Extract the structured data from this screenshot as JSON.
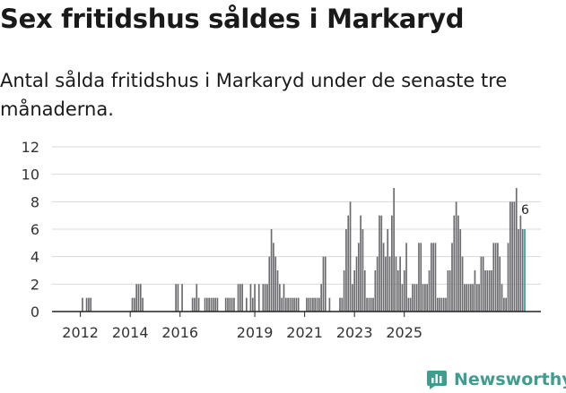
{
  "header": {
    "title": "Sex fritidshus såldes i Markaryd",
    "subtitle": "Antal sålda fritidshus i Markaryd under de senaste tre månaderna."
  },
  "brand": {
    "name": "Newsworthy",
    "icon": "newsworthy-chart-icon",
    "color": "#3f9c8f"
  },
  "chart_data": {
    "type": "bar",
    "title": "",
    "xlabel": "",
    "ylabel": "",
    "ylim": [
      0,
      12
    ],
    "yticks": [
      "0",
      "2",
      "4",
      "6",
      "8",
      "10",
      "12"
    ],
    "grid": true,
    "bar_color": "#6b6a6e",
    "highlight_color": "#2a9e9a",
    "annotation": "6",
    "xticks": [
      {
        "label": "2012",
        "date": "2012-01"
      },
      {
        "label": "2014",
        "date": "2014-01"
      },
      {
        "label": "2016",
        "date": "2016-01"
      },
      {
        "label": "2019",
        "date": "2019-01"
      },
      {
        "label": "2021",
        "date": "2021-01"
      },
      {
        "label": "2023",
        "date": "2023-01"
      },
      {
        "label": "2025",
        "date": "2025-01"
      }
    ],
    "start": "2011-11",
    "series": [
      {
        "values": [
          0,
          0,
          0,
          1,
          0,
          1,
          1,
          1,
          0,
          0,
          0,
          0,
          0,
          0,
          0,
          0,
          0,
          0,
          0,
          0,
          0,
          0,
          0,
          0,
          0,
          0,
          0,
          1,
          1,
          2,
          2,
          2,
          1,
          0,
          0,
          0,
          0,
          0,
          0,
          0,
          0,
          0,
          0,
          0,
          0,
          0,
          0,
          0,
          2,
          2,
          0,
          2,
          0,
          0,
          0,
          0,
          1,
          1,
          2,
          1,
          0,
          0,
          1,
          1,
          1,
          1,
          1,
          1,
          1,
          0,
          0,
          0,
          1,
          1,
          1,
          1,
          1,
          0,
          2,
          2,
          2,
          0,
          1,
          0,
          2,
          1,
          2,
          0,
          2,
          0,
          2,
          2,
          2,
          4,
          6,
          5,
          4,
          3,
          2,
          1,
          2,
          1,
          1,
          1,
          1,
          1,
          1,
          1,
          0,
          0,
          0,
          1,
          1,
          1,
          1,
          1,
          1,
          1,
          2,
          4,
          4,
          0,
          1,
          0,
          0,
          0,
          0,
          1,
          1,
          3,
          6,
          7,
          8,
          2,
          3,
          4,
          5,
          7,
          6,
          3,
          1,
          1,
          1,
          1,
          3,
          4,
          7,
          7,
          5,
          4,
          6,
          4,
          7,
          9,
          4,
          3,
          4,
          2,
          3,
          5,
          1,
          1,
          2,
          2,
          2,
          5,
          5,
          2,
          2,
          2,
          3,
          5,
          5,
          5,
          1,
          1,
          1,
          1,
          1,
          3,
          3,
          5,
          7,
          8,
          7,
          6,
          4,
          2,
          2,
          2,
          2,
          2,
          3,
          2,
          2,
          4,
          4,
          3,
          3,
          3,
          3,
          5,
          5,
          5,
          4,
          2,
          1,
          1,
          5,
          8,
          8,
          8,
          9,
          6,
          7,
          6,
          6
        ]
      }
    ]
  }
}
